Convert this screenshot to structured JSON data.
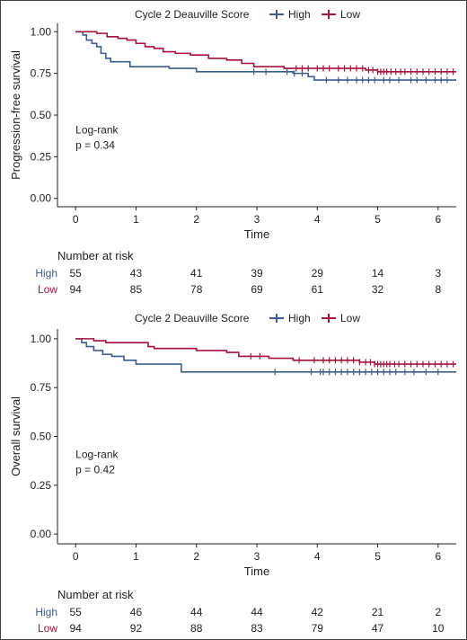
{
  "chart_data": [
    {
      "type": "line",
      "legend": {
        "title": "Cycle 2 Deauville Score",
        "placement": "top"
      },
      "ylabel": "Progression-free survival",
      "xlabel": "Time",
      "xlim": [
        -0.3,
        6.3
      ],
      "ylim": [
        -0.05,
        1.05
      ],
      "x_ticks": [
        "0",
        "1",
        "2",
        "3",
        "4",
        "5",
        "6"
      ],
      "y_ticks": [
        "0.00",
        "0.25",
        "0.50",
        "0.75",
        "1.00"
      ],
      "annotation": {
        "line1": "Log-rank",
        "line2": "p = 0.34"
      },
      "series": [
        {
          "name": "High",
          "color": "#3a5d8f",
          "steps": [
            [
              0,
              1.0
            ],
            [
              0.12,
              0.98
            ],
            [
              0.18,
              0.95
            ],
            [
              0.27,
              0.93
            ],
            [
              0.35,
              0.91
            ],
            [
              0.42,
              0.87
            ],
            [
              0.5,
              0.84
            ],
            [
              0.58,
              0.82
            ],
            [
              0.9,
              0.79
            ],
            [
              1.55,
              0.78
            ],
            [
              2.0,
              0.76
            ],
            [
              3.6,
              0.75
            ],
            [
              3.85,
              0.73
            ],
            [
              3.95,
              0.71
            ],
            [
              6.3,
              0.71
            ]
          ],
          "censor": [
            2.95,
            3.15,
            3.5,
            3.62,
            3.75,
            4.15,
            4.35,
            4.5,
            4.65,
            4.75,
            4.85,
            4.95,
            5.1,
            5.2,
            5.35,
            5.55,
            5.65,
            5.8,
            5.95,
            6.05,
            6.15
          ]
        },
        {
          "name": "Low",
          "color": "#a5123a",
          "steps": [
            [
              0,
              1.0
            ],
            [
              0.35,
              0.99
            ],
            [
              0.52,
              0.97
            ],
            [
              0.7,
              0.96
            ],
            [
              0.85,
              0.95
            ],
            [
              1.0,
              0.93
            ],
            [
              1.15,
              0.91
            ],
            [
              1.3,
              0.9
            ],
            [
              1.45,
              0.88
            ],
            [
              1.65,
              0.87
            ],
            [
              1.9,
              0.86
            ],
            [
              2.2,
              0.84
            ],
            [
              2.5,
              0.83
            ],
            [
              2.75,
              0.81
            ],
            [
              2.95,
              0.79
            ],
            [
              3.45,
              0.78
            ],
            [
              4.8,
              0.77
            ],
            [
              5.0,
              0.76
            ],
            [
              6.3,
              0.76
            ]
          ],
          "censor": [
            3.65,
            3.75,
            3.85,
            4.0,
            4.1,
            4.2,
            4.35,
            4.45,
            4.55,
            4.65,
            4.75,
            4.85,
            4.92,
            5.0,
            5.05,
            5.1,
            5.15,
            5.22,
            5.3,
            5.38,
            5.45,
            5.55,
            5.65,
            5.75,
            5.85,
            5.95,
            6.05,
            6.15,
            6.25
          ]
        }
      ]
    },
    {
      "type": "line",
      "legend": {
        "title": "Cycle 2 Deauville Score",
        "placement": "top"
      },
      "ylabel": "Overall survival",
      "xlabel": "Time",
      "xlim": [
        -0.3,
        6.3
      ],
      "ylim": [
        -0.05,
        1.05
      ],
      "x_ticks": [
        "0",
        "1",
        "2",
        "3",
        "4",
        "5",
        "6"
      ],
      "y_ticks": [
        "0.00",
        "0.25",
        "0.50",
        "0.75",
        "1.00"
      ],
      "annotation": {
        "line1": "Log-rank",
        "line2": "p = 0.42"
      },
      "series": [
        {
          "name": "High",
          "color": "#3a5d8f",
          "steps": [
            [
              0,
              1.0
            ],
            [
              0.1,
              0.98
            ],
            [
              0.18,
              0.96
            ],
            [
              0.3,
              0.94
            ],
            [
              0.45,
              0.92
            ],
            [
              0.6,
              0.91
            ],
            [
              0.8,
              0.89
            ],
            [
              1.0,
              0.87
            ],
            [
              1.75,
              0.83
            ],
            [
              6.3,
              0.83
            ]
          ],
          "censor": [
            3.3,
            3.9,
            4.05,
            4.1,
            4.2,
            4.3,
            4.4,
            4.5,
            4.6,
            4.7,
            4.8,
            4.9,
            5.0,
            5.1,
            5.2,
            5.3,
            5.45,
            5.6,
            5.8,
            6.0
          ]
        },
        {
          "name": "Low",
          "color": "#a5123a",
          "steps": [
            [
              0,
              1.0
            ],
            [
              0.3,
              0.99
            ],
            [
              0.5,
              0.98
            ],
            [
              1.2,
              0.96
            ],
            [
              1.3,
              0.95
            ],
            [
              2.0,
              0.94
            ],
            [
              2.5,
              0.93
            ],
            [
              2.7,
              0.91
            ],
            [
              3.2,
              0.9
            ],
            [
              3.6,
              0.89
            ],
            [
              4.7,
              0.88
            ],
            [
              4.95,
              0.87
            ],
            [
              6.3,
              0.87
            ]
          ],
          "censor": [
            2.9,
            3.05,
            3.7,
            3.95,
            4.1,
            4.2,
            4.3,
            4.4,
            4.5,
            4.6,
            4.7,
            4.8,
            4.88,
            4.95,
            5.0,
            5.05,
            5.1,
            5.15,
            5.2,
            5.28,
            5.35,
            5.45,
            5.55,
            5.65,
            5.75,
            5.85,
            5.95,
            6.05,
            6.15,
            6.25
          ]
        }
      ]
    }
  ],
  "risk_tables": [
    {
      "title": "Number at risk",
      "rows": [
        {
          "label": "High",
          "color": "#3a5d8f",
          "values": [
            "55",
            "43",
            "41",
            "39",
            "29",
            "14",
            "3"
          ]
        },
        {
          "label": "Low",
          "color": "#a5123a",
          "values": [
            "94",
            "85",
            "78",
            "69",
            "61",
            "32",
            "8"
          ]
        }
      ]
    },
    {
      "title": "Number at risk",
      "rows": [
        {
          "label": "High",
          "color": "#3a5d8f",
          "values": [
            "55",
            "46",
            "44",
            "44",
            "42",
            "21",
            "2"
          ]
        },
        {
          "label": "Low",
          "color": "#a5123a",
          "values": [
            "94",
            "92",
            "88",
            "83",
            "79",
            "47",
            "10"
          ]
        }
      ]
    }
  ]
}
